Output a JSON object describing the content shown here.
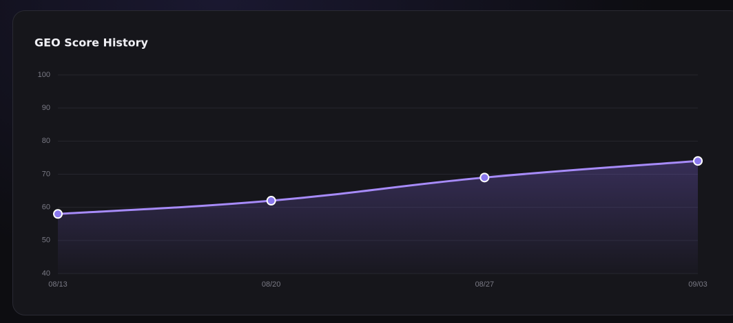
{
  "chart_data": {
    "type": "line",
    "title": "GEO Score History",
    "categories": [
      "08/13",
      "08/20",
      "08/27",
      "09/03"
    ],
    "series": [
      {
        "name": "GEO Score",
        "color": "#a78bfa",
        "values": [
          58,
          62,
          69,
          74
        ]
      }
    ],
    "ylim": [
      40,
      100
    ],
    "yticks": [
      40,
      50,
      60,
      70,
      80,
      90,
      100
    ],
    "grid": true
  }
}
